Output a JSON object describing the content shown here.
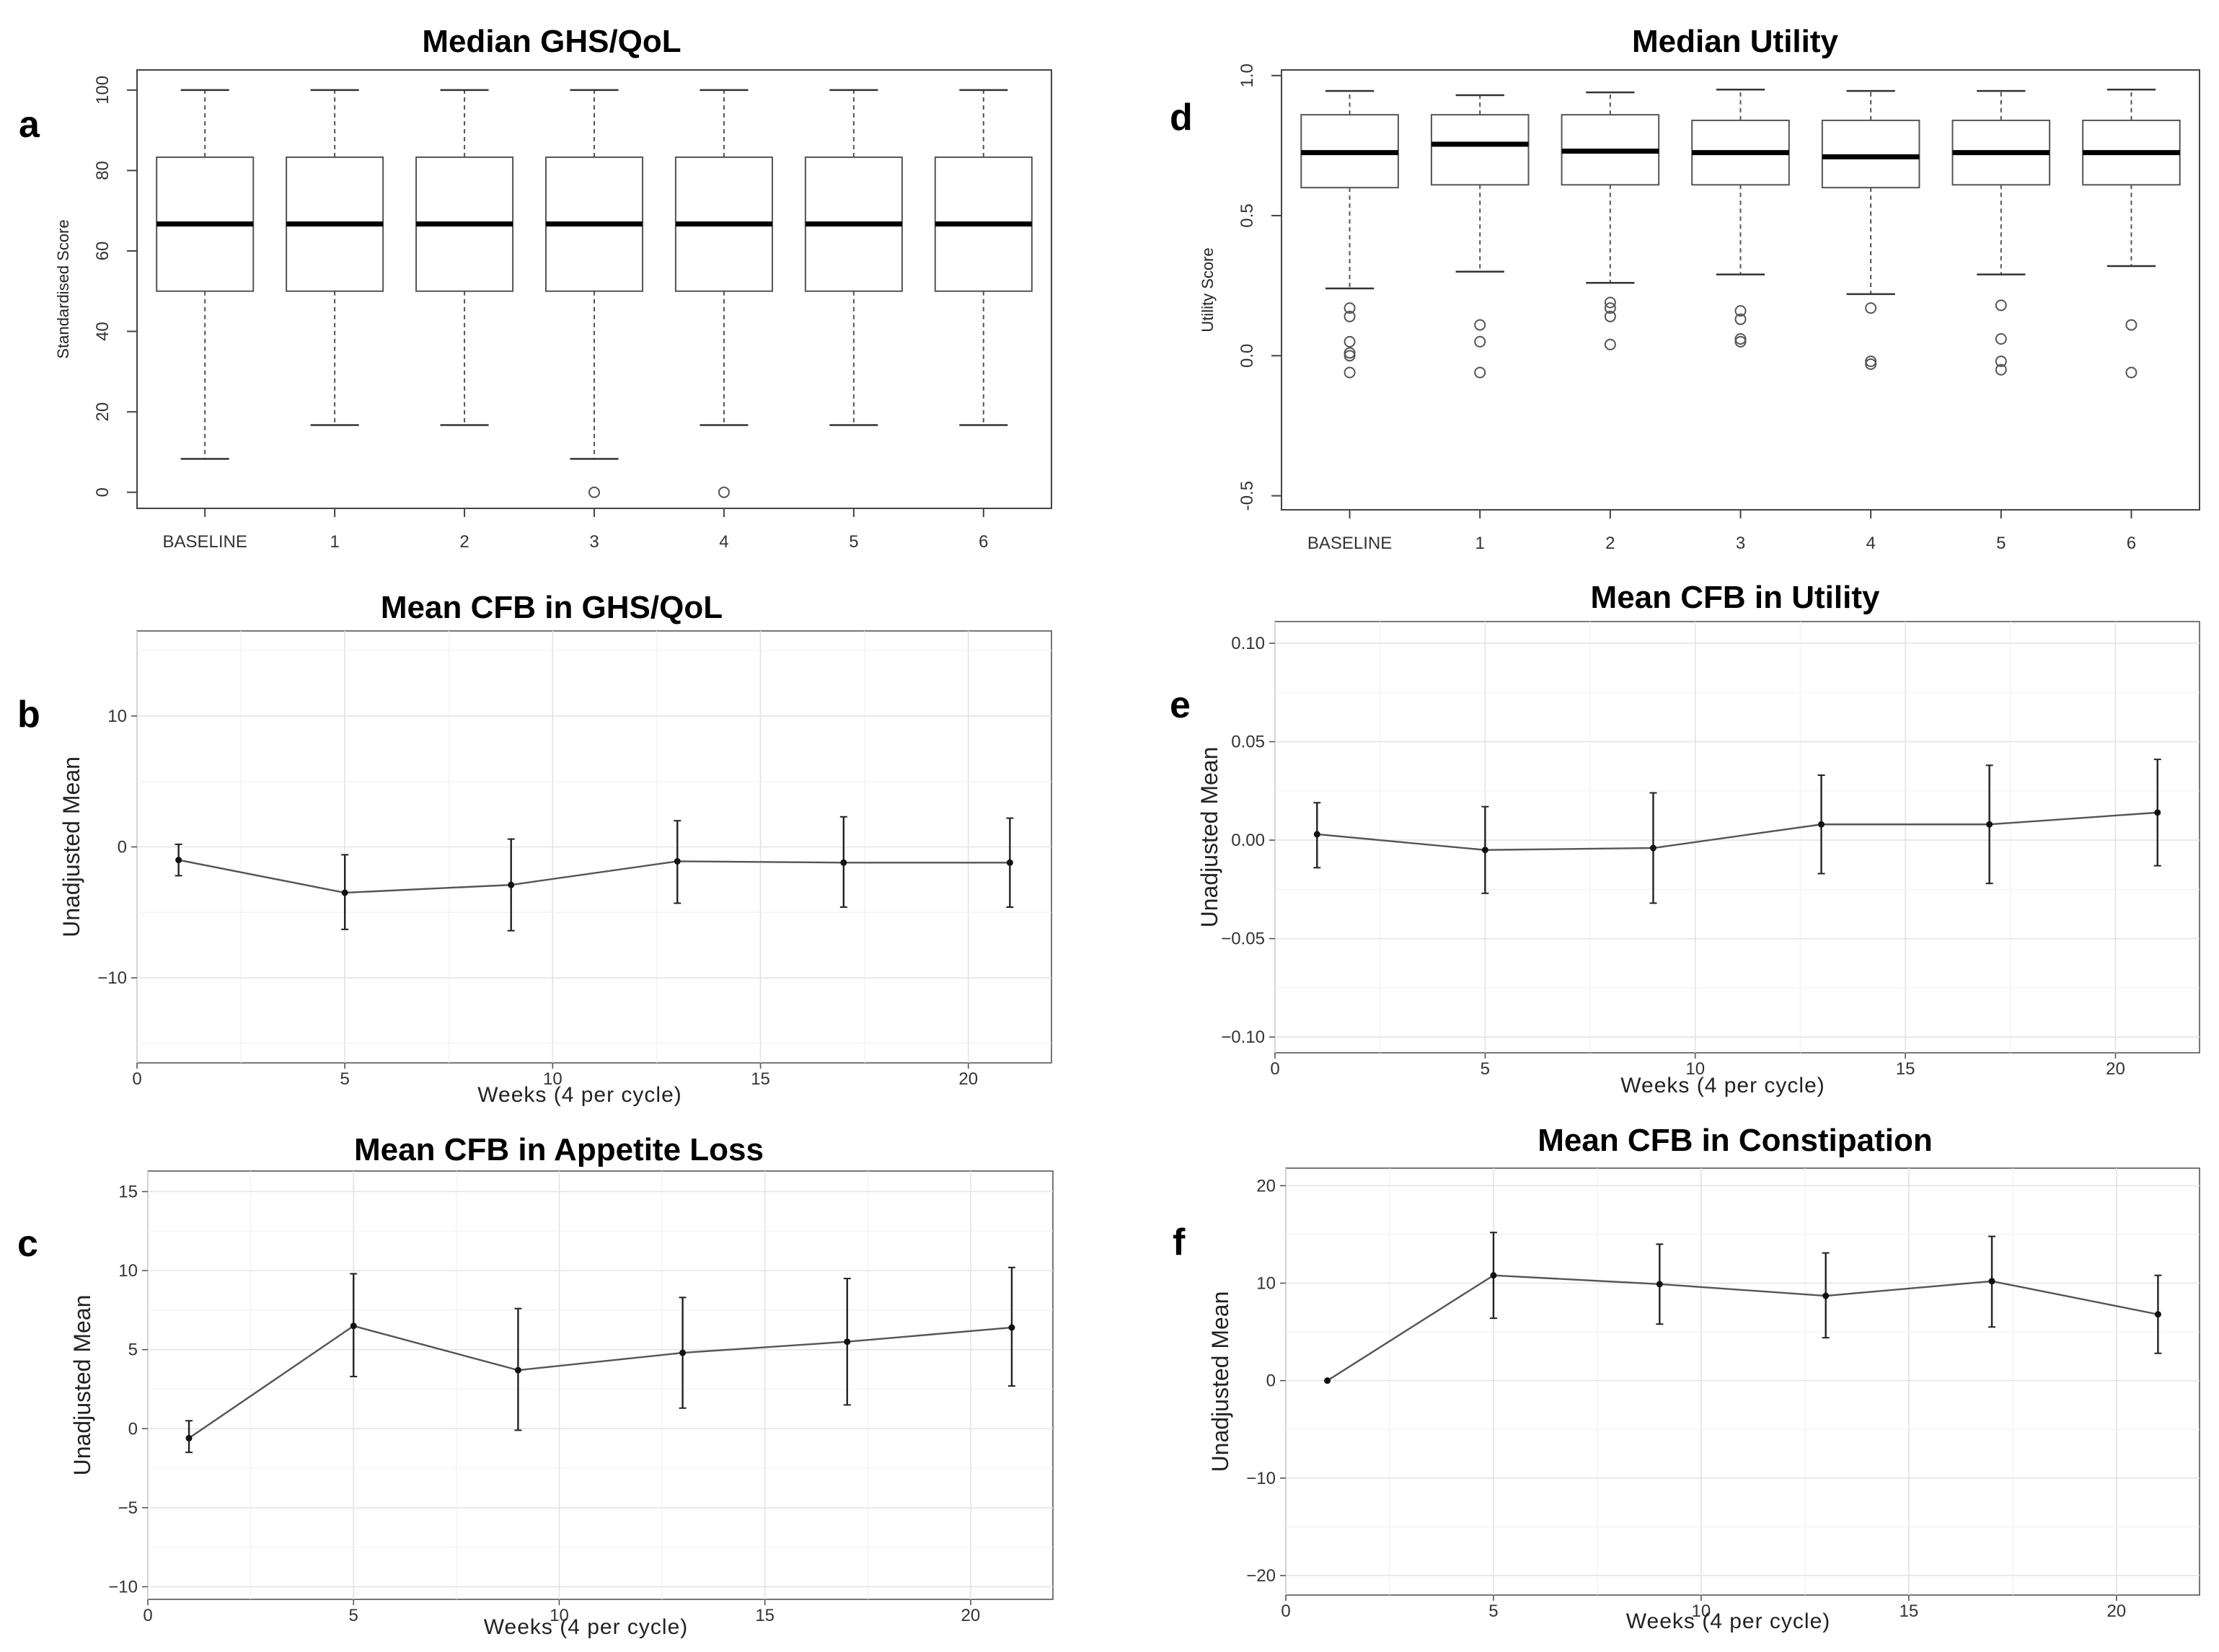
{
  "figure": {
    "panels": [
      {
        "label": "a"
      },
      {
        "label": "b"
      },
      {
        "label": "c"
      },
      {
        "label": "d"
      },
      {
        "label": "e"
      },
      {
        "label": "f"
      }
    ]
  },
  "chart_data": [
    {
      "id": "a",
      "type": "box",
      "title": "Median GHS/QoL",
      "ylabel": "Standardised Score",
      "xlabel": "",
      "ylim": [
        -4,
        105
      ],
      "yticks": [
        "0",
        "20",
        "40",
        "60",
        "80",
        "100"
      ],
      "ytick_values": [
        0,
        20,
        40,
        60,
        80,
        100
      ],
      "categories": [
        "BASELINE",
        "1",
        "2",
        "3",
        "4",
        "5",
        "6"
      ],
      "boxes": [
        {
          "low": 8.3,
          "q1": 50,
          "median": 66.7,
          "q3": 83.3,
          "high": 100,
          "outliers": []
        },
        {
          "low": 16.7,
          "q1": 50,
          "median": 66.7,
          "q3": 83.3,
          "high": 100,
          "outliers": []
        },
        {
          "low": 16.7,
          "q1": 50,
          "median": 66.7,
          "q3": 83.3,
          "high": 100,
          "outliers": []
        },
        {
          "low": 8.3,
          "q1": 50,
          "median": 66.7,
          "q3": 83.3,
          "high": 100,
          "outliers": [
            0
          ]
        },
        {
          "low": 16.7,
          "q1": 50,
          "median": 66.7,
          "q3": 83.3,
          "high": 100,
          "outliers": [
            0
          ]
        },
        {
          "low": 16.7,
          "q1": 50,
          "median": 66.7,
          "q3": 83.3,
          "high": 100,
          "outliers": []
        },
        {
          "low": 16.7,
          "q1": 50,
          "median": 66.7,
          "q3": 83.3,
          "high": 100,
          "outliers": []
        }
      ]
    },
    {
      "id": "b",
      "type": "line",
      "title": "Mean CFB in GHS/QoL",
      "ylabel": "Unadjusted Mean",
      "xlabel": "Weeks (4 per cycle)",
      "xlim": [
        0,
        22
      ],
      "ylim": [
        -16.5,
        16.5
      ],
      "xticks": [
        "0",
        "5",
        "10",
        "15",
        "20"
      ],
      "xtick_values": [
        0,
        5,
        10,
        15,
        20
      ],
      "yticks": [
        "−10",
        "0",
        "10"
      ],
      "ytick_values": [
        -10,
        0,
        10
      ],
      "x": [
        1,
        5,
        9,
        13,
        17,
        21
      ],
      "y": [
        -1.0,
        -3.5,
        -2.9,
        -1.1,
        -1.2,
        -1.2
      ],
      "lower": [
        -2.2,
        -6.3,
        -6.4,
        -4.3,
        -4.6,
        -4.6
      ],
      "upper": [
        0.2,
        -0.6,
        0.6,
        2.0,
        2.3,
        2.2
      ]
    },
    {
      "id": "c",
      "type": "line",
      "title": "Mean CFB in Appetite Loss",
      "ylabel": "Unadjusted Mean",
      "xlabel": "Weeks (4 per cycle)",
      "xlim": [
        0,
        22
      ],
      "ylim": [
        -10.8,
        16.3
      ],
      "xticks": [
        "0",
        "5",
        "10",
        "15",
        "20"
      ],
      "xtick_values": [
        0,
        5,
        10,
        15,
        20
      ],
      "yticks": [
        "−10",
        "−5",
        "0",
        "5",
        "10",
        "15"
      ],
      "ytick_values": [
        -10,
        -5,
        0,
        5,
        10,
        15
      ],
      "x": [
        1,
        5,
        9,
        13,
        17,
        21
      ],
      "y": [
        -0.6,
        6.5,
        3.7,
        4.8,
        5.5,
        6.4
      ],
      "lower": [
        -1.5,
        3.3,
        -0.1,
        1.3,
        1.5,
        2.7
      ],
      "upper": [
        0.5,
        9.8,
        7.6,
        8.3,
        9.5,
        10.2
      ]
    },
    {
      "id": "d",
      "type": "box",
      "title": "Median Utility",
      "ylabel": "Utility Score",
      "xlabel": "",
      "ylim": [
        -0.55,
        1.02
      ],
      "yticks": [
        "-0.5",
        "0.0",
        "0.5",
        "1.0"
      ],
      "ytick_values": [
        -0.5,
        0.0,
        0.5,
        1.0
      ],
      "categories": [
        "BASELINE",
        "1",
        "2",
        "3",
        "4",
        "5",
        "6"
      ],
      "boxes": [
        {
          "low": 0.24,
          "q1": 0.6,
          "median": 0.725,
          "q3": 0.86,
          "high": 0.945,
          "outliers": [
            0.17,
            0.14,
            0.05,
            0.01,
            0.0,
            -0.06
          ]
        },
        {
          "low": 0.3,
          "q1": 0.61,
          "median": 0.755,
          "q3": 0.86,
          "high": 0.93,
          "outliers": [
            0.11,
            0.05,
            -0.06
          ]
        },
        {
          "low": 0.26,
          "q1": 0.61,
          "median": 0.73,
          "q3": 0.86,
          "high": 0.94,
          "outliers": [
            0.19,
            0.17,
            0.14,
            0.04
          ]
        },
        {
          "low": 0.29,
          "q1": 0.61,
          "median": 0.725,
          "q3": 0.84,
          "high": 0.95,
          "outliers": [
            0.16,
            0.13,
            0.06,
            0.05
          ]
        },
        {
          "low": 0.22,
          "q1": 0.6,
          "median": 0.71,
          "q3": 0.84,
          "high": 0.945,
          "outliers": [
            0.17,
            -0.02,
            -0.03
          ]
        },
        {
          "low": 0.29,
          "q1": 0.61,
          "median": 0.725,
          "q3": 0.84,
          "high": 0.945,
          "outliers": [
            0.18,
            0.06,
            -0.02,
            -0.05
          ]
        },
        {
          "low": 0.32,
          "q1": 0.61,
          "median": 0.725,
          "q3": 0.84,
          "high": 0.95,
          "outliers": [
            0.11,
            -0.06
          ]
        }
      ]
    },
    {
      "id": "e",
      "type": "line",
      "title": "Mean CFB in Utility",
      "ylabel": "Unadjusted Mean",
      "xlabel": "Weeks (4 per cycle)",
      "xlim": [
        0,
        22
      ],
      "ylim": [
        -0.108,
        0.111
      ],
      "xticks": [
        "0",
        "5",
        "10",
        "15",
        "20"
      ],
      "xtick_values": [
        0,
        5,
        10,
        15,
        20
      ],
      "yticks": [
        "−0.10",
        "−0.05",
        "0.00",
        "0.05",
        "0.10"
      ],
      "ytick_values": [
        -0.1,
        -0.05,
        0.0,
        0.05,
        0.1
      ],
      "x": [
        1,
        5,
        9,
        13,
        17,
        21
      ],
      "y": [
        0.003,
        -0.005,
        -0.004,
        0.008,
        0.008,
        0.014
      ],
      "lower": [
        -0.014,
        -0.027,
        -0.032,
        -0.017,
        -0.022,
        -0.013
      ],
      "upper": [
        0.019,
        0.017,
        0.024,
        0.033,
        0.038,
        0.041
      ]
    },
    {
      "id": "f",
      "type": "line",
      "title": "Mean CFB in Constipation",
      "ylabel": "Unadjusted Mean",
      "xlabel": "Weeks (4 per cycle)",
      "xlim": [
        0,
        22
      ],
      "ylim": [
        -22,
        21.8
      ],
      "xticks": [
        "0",
        "5",
        "10",
        "15",
        "20"
      ],
      "xtick_values": [
        0,
        5,
        10,
        15,
        20
      ],
      "yticks": [
        "−20",
        "−10",
        "0",
        "10",
        "20"
      ],
      "ytick_values": [
        -20,
        -10,
        0,
        10,
        20
      ],
      "x": [
        1,
        5,
        9,
        13,
        17,
        21
      ],
      "y": [
        0.0,
        10.8,
        9.9,
        8.7,
        10.2,
        6.8
      ],
      "lower": [
        0.0,
        6.4,
        5.8,
        4.4,
        5.5,
        2.8
      ],
      "upper": [
        0.0,
        15.2,
        14.0,
        13.1,
        14.8,
        10.8
      ]
    }
  ]
}
